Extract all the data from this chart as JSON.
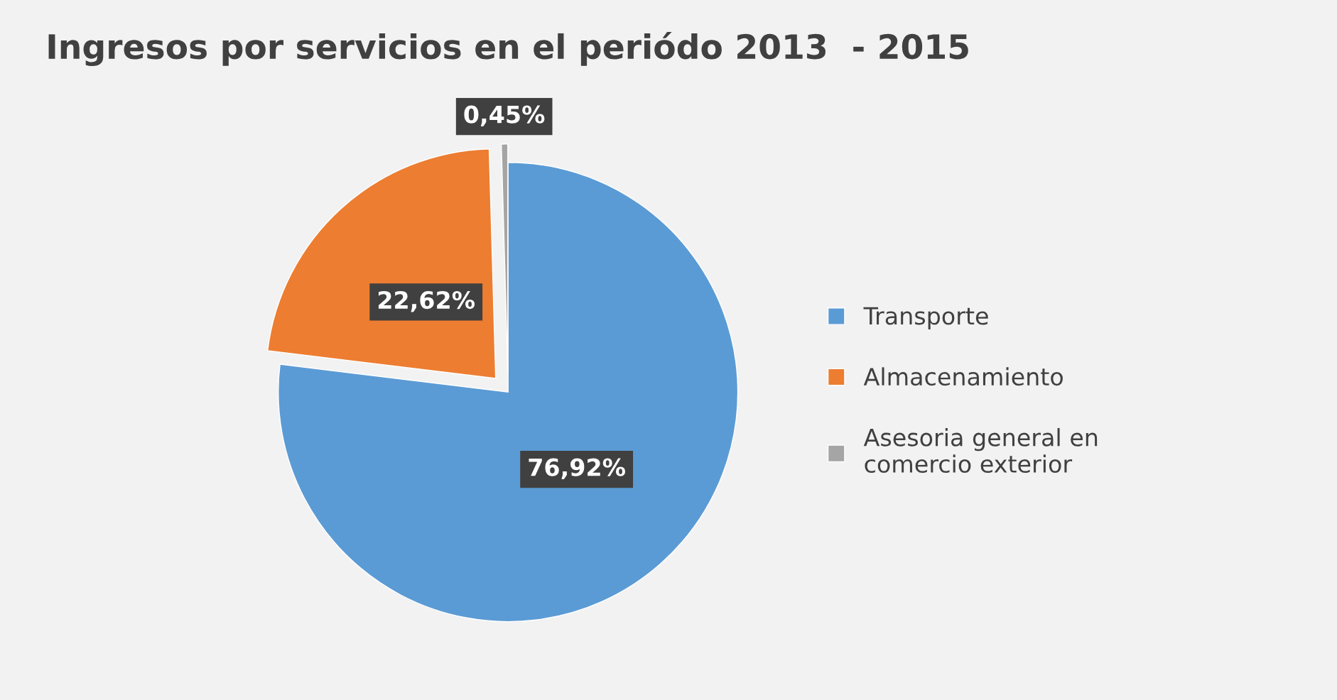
{
  "chart_data": {
    "type": "pie",
    "title": "Ingresos por servicios en el periódo 2013  - 2015",
    "categories": [
      "Transporte",
      "Almacenamiento",
      "Asesoria general en\ncomercio exterior"
    ],
    "values": [
      76.92,
      22.62,
      0.45
    ],
    "value_labels": [
      "76,92%",
      "22,62%",
      "0,45%"
    ],
    "colors": [
      "#5b9bd5",
      "#ed7d31",
      "#a5a5a5"
    ],
    "legend": "right"
  }
}
